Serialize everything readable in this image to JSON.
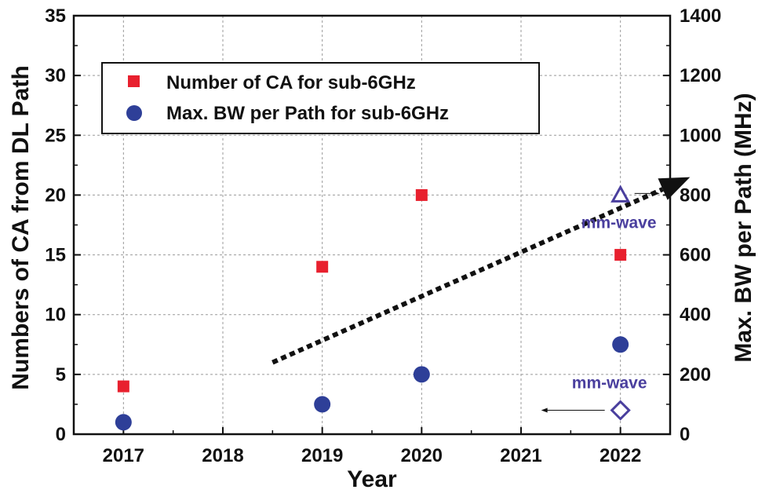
{
  "chart_data": {
    "type": "scatter",
    "x_ticks": [
      "2017",
      "2018",
      "2019",
      "2020",
      "2021",
      "2022"
    ],
    "xlabel": "Year",
    "ylabel_left": "Numbers of CA from DL Path",
    "ylabel_right": "Max. BW per  Path (MHz)",
    "ylim_left": [
      0,
      35
    ],
    "ylim_right": [
      0,
      1400
    ],
    "xlim": [
      2016.5,
      2022.5
    ],
    "left_ticks": [
      "0",
      "5",
      "10",
      "15",
      "20",
      "25",
      "30",
      "35"
    ],
    "right_ticks": [
      "0",
      "200",
      "400",
      "600",
      "800",
      "1000",
      "1200",
      "1400"
    ],
    "grid": true,
    "legend_position": "top-left",
    "series": [
      {
        "name": "Number of CA for sub-6GHz",
        "axis": "left",
        "marker": "square",
        "color": "#e8202e",
        "points": [
          {
            "x": 2017,
            "y": 4
          },
          {
            "x": 2019,
            "y": 14
          },
          {
            "x": 2020,
            "y": 20
          },
          {
            "x": 2022,
            "y": 15
          }
        ]
      },
      {
        "name": "Max. BW per Path for sub-6GHz",
        "axis": "right",
        "marker": "circle",
        "color": "#2e3f98",
        "points": [
          {
            "x": 2017,
            "y": 40
          },
          {
            "x": 2019,
            "y": 100
          },
          {
            "x": 2020,
            "y": 200
          },
          {
            "x": 2022,
            "y": 300
          }
        ]
      }
    ],
    "annotations": [
      {
        "label": "mm-wave",
        "marker": "triangle",
        "axis": "left",
        "x": 2022,
        "y": 20,
        "points_to": "right",
        "color": "#4a3f9e"
      },
      {
        "label": "mm-wave",
        "marker": "diamond",
        "axis": "right",
        "x": 2022,
        "y": 80,
        "points_to": "left",
        "color": "#4a3f9e"
      }
    ],
    "trend_arrow": {
      "from": {
        "x": 2018.5,
        "y_left": 6
      },
      "to": {
        "x": 2022.7,
        "y_left": 21.5
      }
    }
  }
}
